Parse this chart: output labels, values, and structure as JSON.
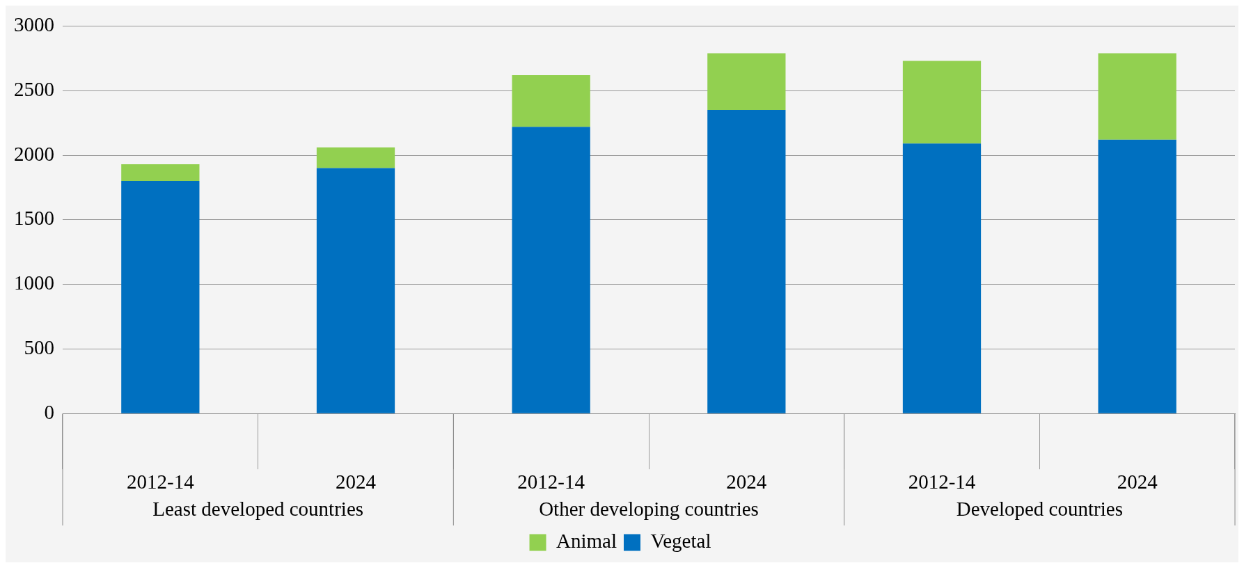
{
  "chart_data": {
    "type": "bar",
    "stacked": true,
    "categories": [
      "2012-14",
      "2024",
      "2012-14",
      "2024",
      "2012-14",
      "2024"
    ],
    "series": [
      {
        "name": "Vegetal",
        "color": "#0070c0",
        "values": [
          1800,
          1900,
          2220,
          2350,
          2090,
          2120
        ]
      },
      {
        "name": "Animal",
        "color": "#92d050",
        "values": [
          130,
          160,
          400,
          440,
          640,
          670
        ]
      }
    ],
    "ylim": [
      0,
      3000
    ],
    "yticks": [
      0,
      500,
      1000,
      1500,
      2000,
      2500,
      3000
    ],
    "grid": "y",
    "legend": "bottom",
    "annotations": [
      "Least developed countries",
      "Other developing countries",
      "Developed countries"
    ]
  }
}
